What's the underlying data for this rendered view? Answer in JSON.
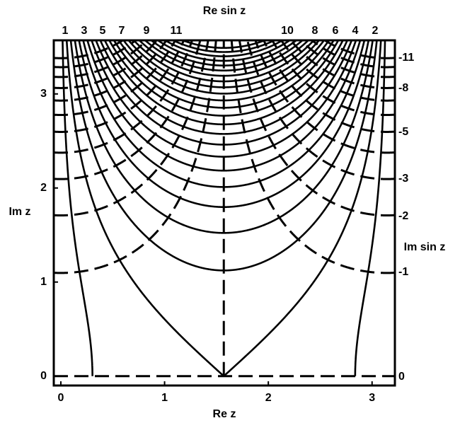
{
  "chart_data": {
    "type": "contour",
    "title": "Re sin z",
    "x_label": "Re z",
    "y_label": "Im z",
    "y2_label": "Im sin z",
    "xlim": [
      -0.068,
      3.22
    ],
    "ylim": [
      -0.1,
      3.57
    ],
    "xticks": [
      0,
      1,
      2,
      3
    ],
    "yticks": [
      0,
      1,
      2,
      3
    ],
    "re_contour_labels": [
      "1",
      "3",
      "5",
      "7",
      "9",
      "11",
      "10",
      "8",
      "6",
      "4",
      "2"
    ],
    "im_contour_labels": [
      "-11",
      "-8",
      "-5",
      "-3",
      "-2",
      "-1",
      "0"
    ],
    "re_levels": [
      0.3,
      1.0,
      1.7,
      2.4,
      3.1,
      3.8,
      4.5,
      5.2,
      5.9,
      6.6,
      7.3,
      8.0,
      8.7,
      9.4,
      10.1,
      10.8,
      11.5,
      12.2,
      12.9,
      13.6,
      14.3,
      15.0,
      15.7,
      16.4
    ],
    "im_levels": [
      0,
      1.33,
      2.67,
      4.0,
      5.33,
      6.67,
      8.0,
      9.33,
      10.67,
      12.0,
      13.33,
      14.67,
      -1.33,
      -2.67,
      -4.0,
      -5.33,
      -6.67,
      -8.0,
      -9.33,
      -10.67,
      -12.0,
      -13.33,
      -14.67
    ],
    "color": "#000000"
  }
}
